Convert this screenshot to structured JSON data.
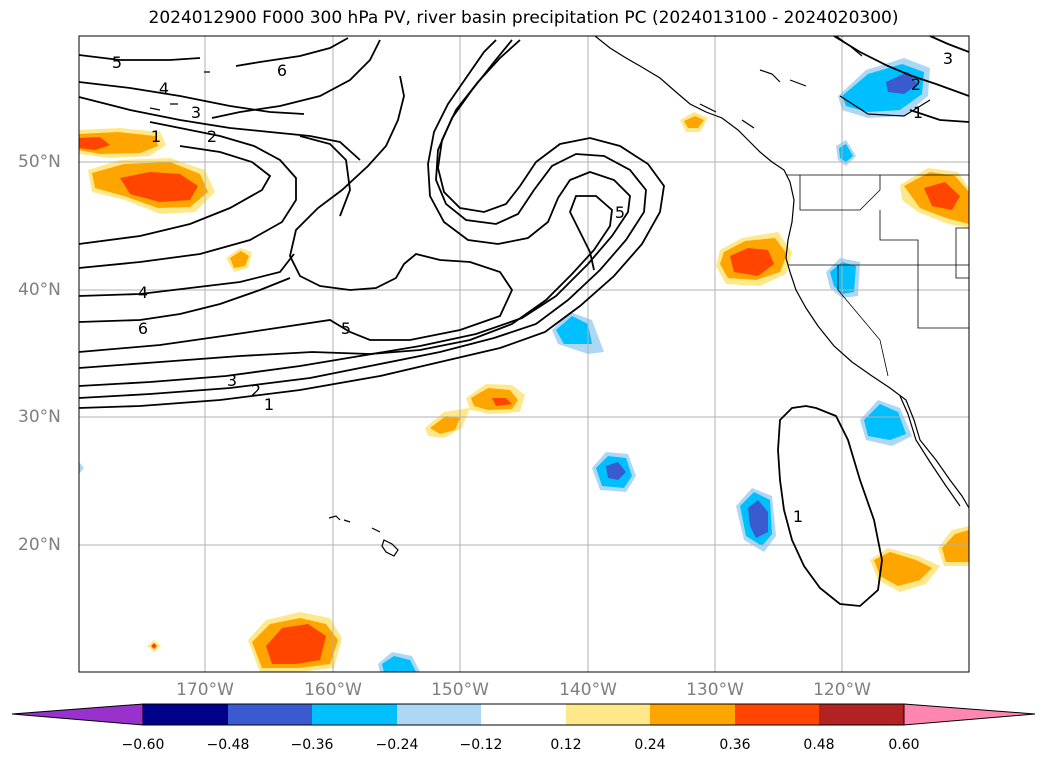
{
  "title": "2024012900 F000 300 hPa PV, river basin precipitation PC (2024013100 - 2024020300)",
  "lat_labels": [
    "50°N",
    "40°N",
    "30°N",
    "20°N"
  ],
  "lon_labels": [
    "170°W",
    "160°W",
    "150°W",
    "140°W",
    "130°W",
    "120°W"
  ],
  "contour_labels": [
    "5",
    "6",
    "4",
    "3",
    "2",
    "1",
    "5",
    "4",
    "6",
    "5",
    "3",
    "2",
    "1",
    "1",
    "2",
    "1",
    "3"
  ],
  "colorbar": {
    "ticks": [
      "−0.60",
      "−0.48",
      "−0.36",
      "−0.24",
      "−0.12",
      "0.12",
      "0.24",
      "0.36",
      "0.48",
      "0.60"
    ],
    "colors": [
      "#9932cc",
      "#00008b",
      "#3a5bd0",
      "#00bfff",
      "#add8f5",
      "#ffffff",
      "#ffe88a",
      "#ffa500",
      "#ff4500",
      "#b22222",
      "#ff86b0"
    ]
  },
  "colors": {
    "pos_light": "#ffe88a",
    "pos_mid": "#ffa500",
    "pos_high": "#ff4500",
    "neg_light": "#add8f5",
    "neg_mid": "#00bfff",
    "neg_high": "#3a5bd0",
    "grid": "#b0b0b0",
    "contour": "#000000"
  }
}
